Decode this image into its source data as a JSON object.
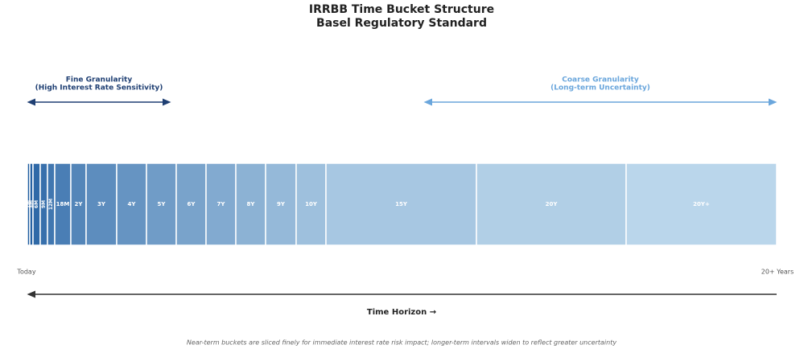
{
  "title": "IRRBB Time Bucket Structure",
  "subtitle": "Basel Regulatory Standard",
  "fine": {
    "title": "Fine Granularity",
    "subtitle": "(High Interest Rate Sensitivity)"
  },
  "coarse": {
    "title": "Coarse Granularity",
    "subtitle": "(Long-term Uncertainty)"
  },
  "buckets": [
    "1M",
    "3M",
    "6M",
    "9M",
    "12M",
    "18M",
    "2Y",
    "3Y",
    "4Y",
    "5Y",
    "6Y",
    "7Y",
    "8Y",
    "9Y",
    "10Y",
    "15Y",
    "20Y",
    "20Y+"
  ],
  "axis": {
    "start": "Today",
    "end": "20+ Years",
    "label": "Time Horizon →"
  },
  "footnote": "Near-term buckets are sliced finely for immediate interest rate risk impact; longer-term intervals widen to reflect greater uncertainty"
}
